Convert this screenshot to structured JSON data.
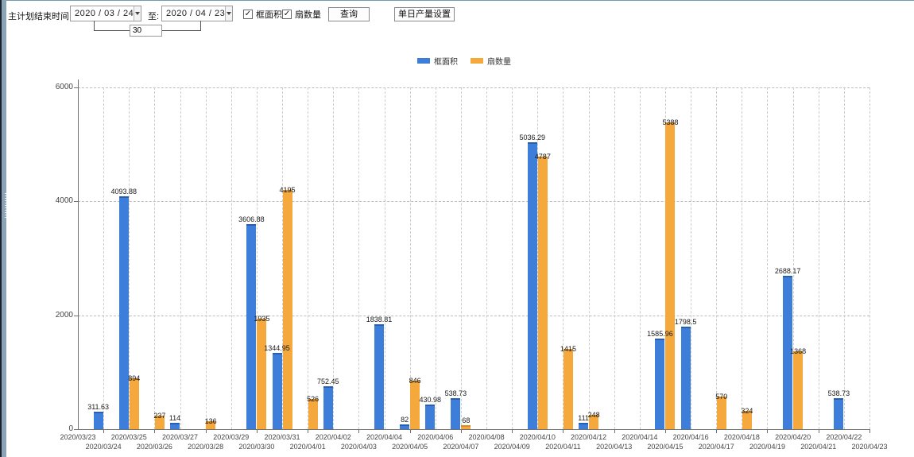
{
  "toolbar": {
    "plan_end_label": "主计划结束时间:",
    "date_from": "2020 / 03 / 24",
    "to_label": "至:",
    "date_to": "2020 / 04 / 23",
    "interval_days": "30",
    "checkbox_frame_area": "框面积",
    "checkbox_fan_count": "扇数量",
    "checkbox_frame_area_checked": "✓",
    "checkbox_fan_count_checked": "✓",
    "query_button": "查询",
    "daily_output_button": "单日产量设置"
  },
  "colors": {
    "frame_area": "#3D7EDB",
    "frame_area_cap": "#2a5fb0",
    "fan_count": "#F5A83C",
    "fan_count_cap": "#d88b23"
  },
  "chart_data": {
    "type": "bar",
    "title": "",
    "xlabel": "",
    "ylabel": "",
    "ylim": [
      0,
      6000
    ],
    "yticks": [
      0,
      2000,
      4000,
      6000
    ],
    "grid": true,
    "legend_position": "top",
    "categories": [
      "2020/03/23",
      "2020/03/24",
      "2020/03/25",
      "2020/03/26",
      "2020/03/27",
      "2020/03/28",
      "2020/03/29",
      "2020/03/30",
      "2020/03/31",
      "2020/04/01",
      "2020/04/02",
      "2020/04/03",
      "2020/04/04",
      "2020/04/05",
      "2020/04/06",
      "2020/04/07",
      "2020/04/08",
      "2020/04/09",
      "2020/04/10",
      "2020/04/11",
      "2020/04/12",
      "2020/04/13",
      "2020/04/14",
      "2020/04/15",
      "2020/04/16",
      "2020/04/17",
      "2020/04/18",
      "2020/04/19",
      "2020/04/20",
      "2020/04/21",
      "2020/04/22",
      "2020/04/23"
    ],
    "series": [
      {
        "name": "框面积",
        "color": "#3D7EDB",
        "values": [
          null,
          311.63,
          4093.88,
          null,
          114,
          null,
          null,
          3606.88,
          1344.95,
          null,
          752.45,
          null,
          1838.81,
          82,
          430.98,
          538.73,
          null,
          null,
          5036.29,
          null,
          111,
          null,
          null,
          1585.96,
          1798.5,
          null,
          null,
          null,
          2688.17,
          null,
          538.73,
          null
        ]
      },
      {
        "name": "扇数量",
        "color": "#F5A83C",
        "values": [
          null,
          null,
          894,
          237,
          null,
          136,
          null,
          1935,
          4195,
          526,
          null,
          null,
          null,
          846,
          null,
          68,
          null,
          null,
          4787,
          1415,
          248,
          null,
          null,
          5388,
          null,
          570,
          324,
          null,
          1368,
          null,
          null,
          null
        ]
      }
    ]
  }
}
